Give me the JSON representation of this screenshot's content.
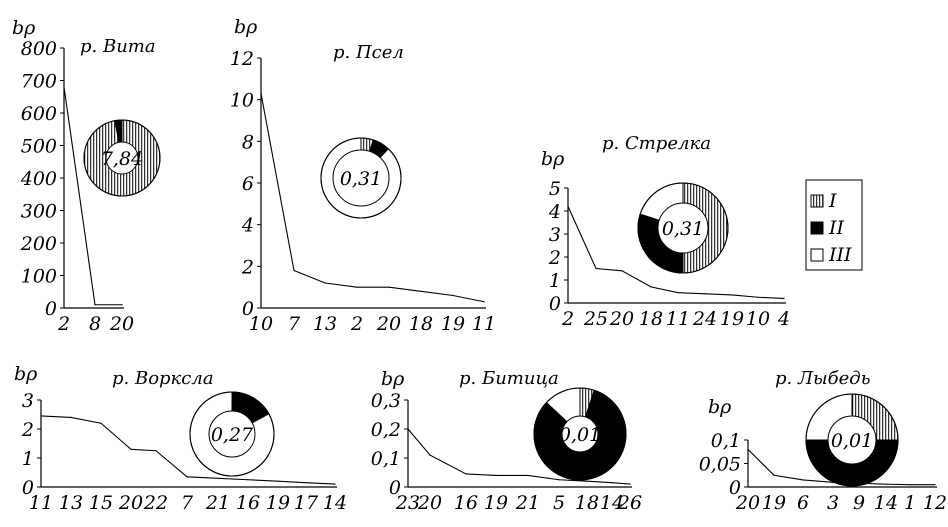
{
  "legend": [
    {
      "label": "I",
      "pattern": "hatch"
    },
    {
      "label": "II",
      "pattern": "solid"
    },
    {
      "label": "III",
      "pattern": "blank"
    }
  ],
  "colors": {
    "ink": "#000000",
    "paper": "#ffffff"
  },
  "chart_data": [
    {
      "type": "line",
      "title": "р. Вита",
      "ylabel": "bρ",
      "ylim": [
        0,
        800
      ],
      "yticks": [
        "0",
        "100",
        "200",
        "300",
        "400",
        "500",
        "600",
        "700",
        "800"
      ],
      "categories": [
        "2",
        "8",
        "20"
      ],
      "values": [
        680,
        10,
        10
      ],
      "inset_pie": {
        "center_label": "7,84",
        "fractions": [
          0.97,
          0.03,
          0
        ]
      }
    },
    {
      "type": "line",
      "title": "р. Псел",
      "ylabel": "bρ",
      "ylim": [
        0,
        12
      ],
      "yticks": [
        "0",
        "2",
        "4",
        "6",
        "8",
        "10",
        "12"
      ],
      "categories": [
        "10",
        "7",
        "13",
        "2",
        "20",
        "18",
        "19",
        "11"
      ],
      "values": [
        10.3,
        1.8,
        1.2,
        1.0,
        1.0,
        0.8,
        0.6,
        0.3
      ],
      "inset_pie": {
        "center_label": "0,31",
        "fractions": [
          0.05,
          0.07,
          0.88
        ]
      }
    },
    {
      "type": "line",
      "title": "р. Стрелка",
      "ylabel": "bρ",
      "ylim": [
        0,
        5
      ],
      "yticks": [
        "0",
        "1",
        "2",
        "3",
        "4",
        "5"
      ],
      "categories": [
        "2",
        "25",
        "20",
        "18",
        "11",
        "24",
        "19",
        "10",
        "4"
      ],
      "values": [
        4.2,
        1.5,
        1.4,
        0.7,
        0.45,
        0.4,
        0.35,
        0.25,
        0.2
      ],
      "inset_pie": {
        "center_label": "0,31",
        "fractions": [
          0.5,
          0.3,
          0.2
        ]
      }
    },
    {
      "type": "line",
      "title": "р. Воркслa",
      "ylabel": "bρ",
      "ylim": [
        0,
        3
      ],
      "yticks": [
        "0",
        "1",
        "2",
        "3"
      ],
      "categories": [
        "11",
        "13",
        "15",
        "20",
        "22",
        "7",
        "21",
        "16",
        "19",
        "17",
        "14"
      ],
      "values": [
        2.45,
        2.4,
        2.2,
        1.3,
        1.25,
        0.35,
        0.3,
        0.25,
        0.2,
        0.15,
        0.1
      ],
      "inset_pie": {
        "center_label": "0,27",
        "fractions": [
          0,
          0.17,
          0.83
        ]
      }
    },
    {
      "type": "line",
      "title": "р. Битица",
      "ylabel": "bρ",
      "ylim": [
        0,
        0.3
      ],
      "yticks": [
        "0",
        "0,1",
        "0,2",
        "0,3"
      ],
      "categories": [
        "23",
        "20",
        "16",
        "19",
        "21",
        "5",
        "18",
        "14",
        "26"
      ],
      "values": [
        0.2,
        0.11,
        0.045,
        0.04,
        0.04,
        0.025,
        0.02,
        0.015,
        0.01
      ],
      "inset_pie": {
        "center_label": "0,01",
        "fractions": [
          0.05,
          0.82,
          0.13
        ]
      }
    },
    {
      "type": "line",
      "title": "р. Лыбедь",
      "ylabel": "bρ",
      "ylim": [
        0,
        0.1
      ],
      "yticks": [
        "0",
        "0,05",
        "0,1"
      ],
      "categories": [
        "20",
        "19",
        "6",
        "3",
        "9",
        "14",
        "1",
        "12"
      ],
      "values": [
        0.08,
        0.025,
        0.015,
        0.01,
        0.008,
        0.006,
        0.005,
        0.005
      ],
      "inset_pie": {
        "center_label": "0,01",
        "fractions": [
          0.25,
          0.5,
          0.25
        ]
      }
    }
  ]
}
